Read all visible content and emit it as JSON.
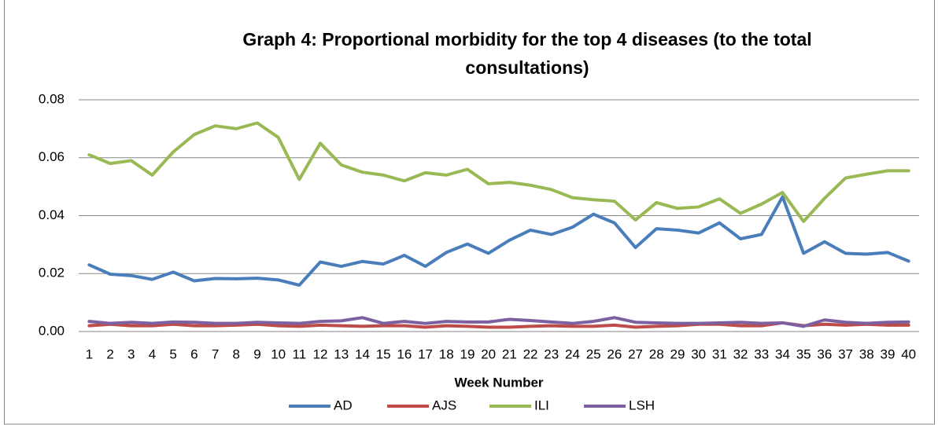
{
  "chart_data": {
    "type": "line",
    "title": "Graph 4: Proportional morbidity for the top 4 diseases (to the total consultations)",
    "x_label": "Week Number",
    "categories": [
      1,
      2,
      3,
      4,
      5,
      6,
      7,
      8,
      9,
      10,
      11,
      12,
      13,
      14,
      15,
      16,
      17,
      18,
      19,
      20,
      21,
      22,
      23,
      24,
      25,
      26,
      27,
      28,
      29,
      30,
      31,
      32,
      33,
      34,
      35,
      36,
      37,
      38,
      39,
      40
    ],
    "series": [
      {
        "name": "AD",
        "color": "#4a7ebb",
        "values": [
          0.023,
          0.0198,
          0.0193,
          0.018,
          0.0205,
          0.0175,
          0.0183,
          0.0182,
          0.0184,
          0.0178,
          0.016,
          0.024,
          0.0225,
          0.0242,
          0.0233,
          0.0263,
          0.0225,
          0.0273,
          0.0302,
          0.027,
          0.0315,
          0.035,
          0.0335,
          0.036,
          0.0405,
          0.0375,
          0.029,
          0.0355,
          0.035,
          0.034,
          0.0375,
          0.032,
          0.0335,
          0.0465,
          0.027,
          0.031,
          0.027,
          0.0267,
          0.0273,
          0.0243
        ]
      },
      {
        "name": "AJS",
        "color": "#be4b48",
        "values": [
          0.002,
          0.0025,
          0.002,
          0.002,
          0.0025,
          0.002,
          0.002,
          0.0022,
          0.0025,
          0.002,
          0.0018,
          0.0022,
          0.002,
          0.0018,
          0.002,
          0.002,
          0.0015,
          0.002,
          0.0018,
          0.0015,
          0.0015,
          0.0018,
          0.002,
          0.0018,
          0.0018,
          0.0022,
          0.0015,
          0.0018,
          0.002,
          0.0025,
          0.0025,
          0.002,
          0.002,
          0.003,
          0.002,
          0.0025,
          0.0022,
          0.0025,
          0.0022,
          0.0022
        ]
      },
      {
        "name": "ILI",
        "color": "#98b954",
        "values": [
          0.061,
          0.058,
          0.059,
          0.054,
          0.062,
          0.068,
          0.071,
          0.07,
          0.072,
          0.067,
          0.0525,
          0.065,
          0.0575,
          0.055,
          0.054,
          0.052,
          0.0548,
          0.054,
          0.056,
          0.051,
          0.0515,
          0.0505,
          0.049,
          0.0462,
          0.0455,
          0.045,
          0.0385,
          0.0445,
          0.0425,
          0.043,
          0.0458,
          0.0408,
          0.044,
          0.048,
          0.038,
          0.046,
          0.053,
          0.0543,
          0.0555,
          0.0555
        ]
      },
      {
        "name": "LSH",
        "color": "#7d60a0",
        "values": [
          0.0035,
          0.0028,
          0.0032,
          0.0028,
          0.0033,
          0.0032,
          0.0028,
          0.0028,
          0.0032,
          0.003,
          0.0028,
          0.0035,
          0.0037,
          0.0048,
          0.0028,
          0.0035,
          0.0028,
          0.0035,
          0.0033,
          0.0033,
          0.0042,
          0.0038,
          0.0033,
          0.0028,
          0.0035,
          0.0048,
          0.0032,
          0.003,
          0.0028,
          0.0028,
          0.003,
          0.0032,
          0.0028,
          0.003,
          0.0018,
          0.004,
          0.0032,
          0.0028,
          0.0032,
          0.0033
        ]
      }
    ],
    "ylim": [
      0,
      0.08
    ],
    "yticks": [
      {
        "value": 0,
        "label": "0.00"
      },
      0.02,
      0.04,
      0.06,
      0.08
    ],
    "grid": true,
    "legend": "bottom"
  }
}
